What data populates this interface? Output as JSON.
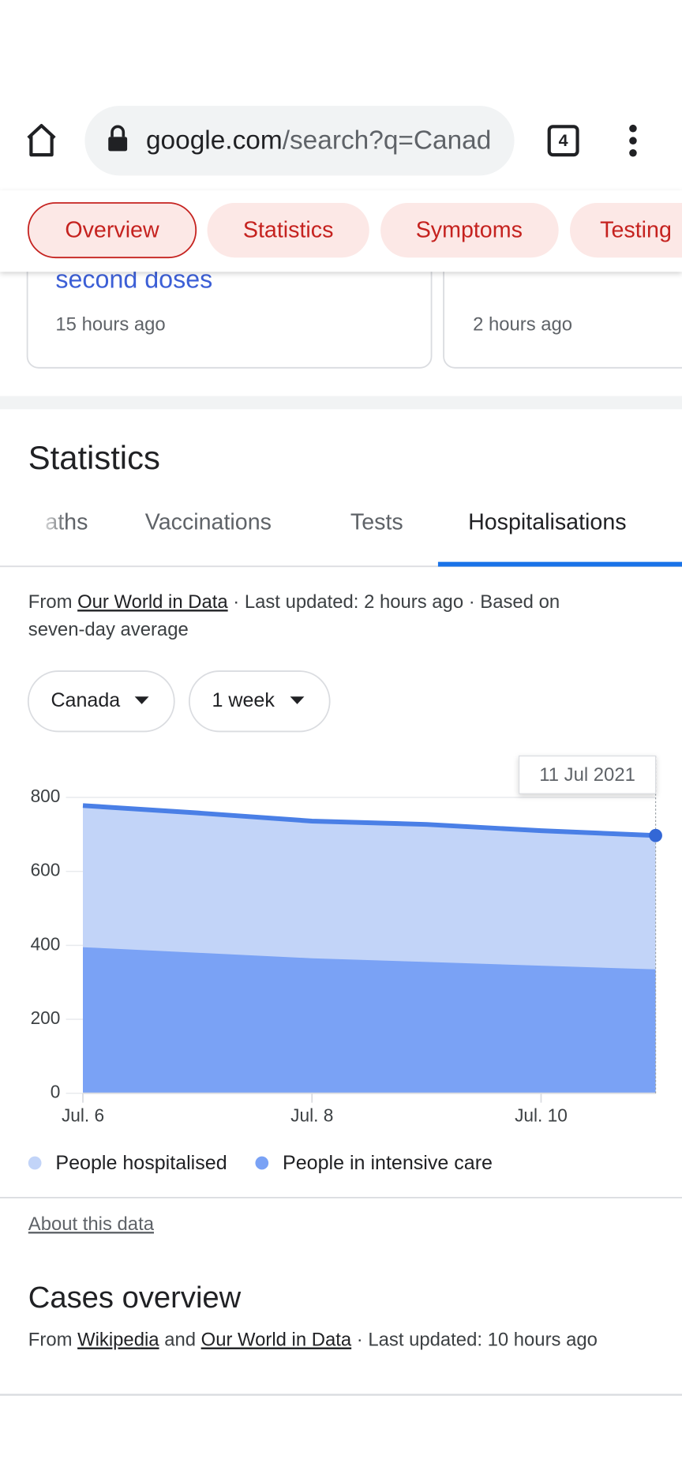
{
  "browser": {
    "domain": "google.com",
    "path": "/search?q=Canad",
    "tab_count": 4
  },
  "chips": [
    "Overview",
    "Statistics",
    "Symptoms",
    "Testing"
  ],
  "cards": [
    {
      "title": "second doses",
      "time": "15 hours ago"
    },
    {
      "time": "2 hours ago"
    }
  ],
  "statistics": {
    "heading": "Statistics",
    "tabs": [
      "aths",
      "Vaccinations",
      "Tests",
      "Hospitalisations"
    ],
    "source": {
      "prefix": "From",
      "link": "Our World in Data",
      "suffix": "· Last updated: 2 hours ago · Based on",
      "suffix2": "seven-day average"
    },
    "filters": [
      "Canada",
      "1 week"
    ],
    "about": "About this data"
  },
  "chart_data": {
    "type": "area",
    "categories": [
      "Jul. 6",
      null,
      "Jul. 8",
      null,
      "Jul. 10",
      null
    ],
    "series": [
      {
        "name": "People hospitalised",
        "color": "#c2d4f8",
        "line_color": "#4a7fe6",
        "values": [
          778,
          758,
          736,
          727,
          710,
          697
        ]
      },
      {
        "name": "People in intensive care",
        "color": "#7aa2f5",
        "values": [
          395,
          380,
          365,
          355,
          345,
          335
        ]
      }
    ],
    "ylim": [
      0,
      800
    ],
    "yticks": [
      0,
      200,
      400,
      600,
      800
    ],
    "grid": true,
    "annotation": "11 Jul 2021"
  },
  "cases": {
    "heading": "Cases overview",
    "prefix": "From",
    "link1": "Wikipedia",
    "and": "and",
    "link2": "Our World in Data",
    "suffix": "· Last updated: 10 hours ago"
  }
}
